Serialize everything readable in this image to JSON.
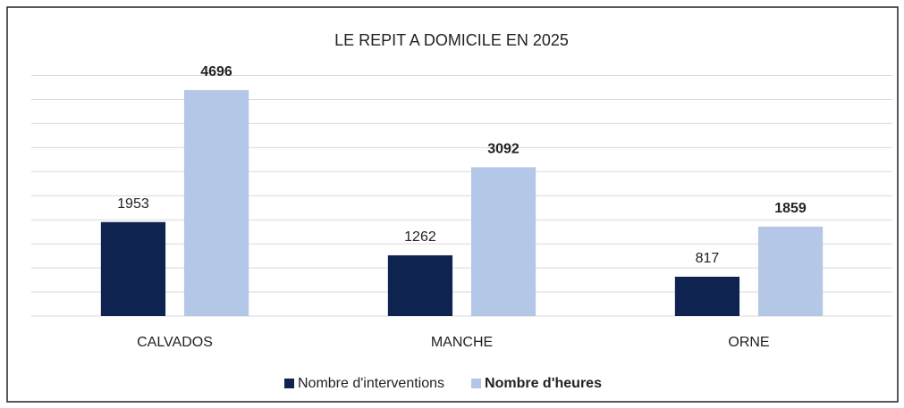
{
  "chart_data": {
    "type": "bar",
    "title": "LE REPIT A DOMICILE EN 2025",
    "categories": [
      "CALVADOS",
      "MANCHE",
      "ORNE"
    ],
    "series": [
      {
        "name": "Nombre d'interventions",
        "color": "#0e2350",
        "values": [
          1953,
          1262,
          817
        ]
      },
      {
        "name": "Nombre d'heures",
        "color": "#b4c7e7",
        "values": [
          4696,
          3092,
          1859
        ]
      }
    ],
    "ylim": [
      0,
      5000
    ],
    "yticks": [
      0,
      500,
      1000,
      1500,
      2000,
      2500,
      3000,
      3500,
      4000,
      4500,
      5000
    ],
    "grid": true
  }
}
